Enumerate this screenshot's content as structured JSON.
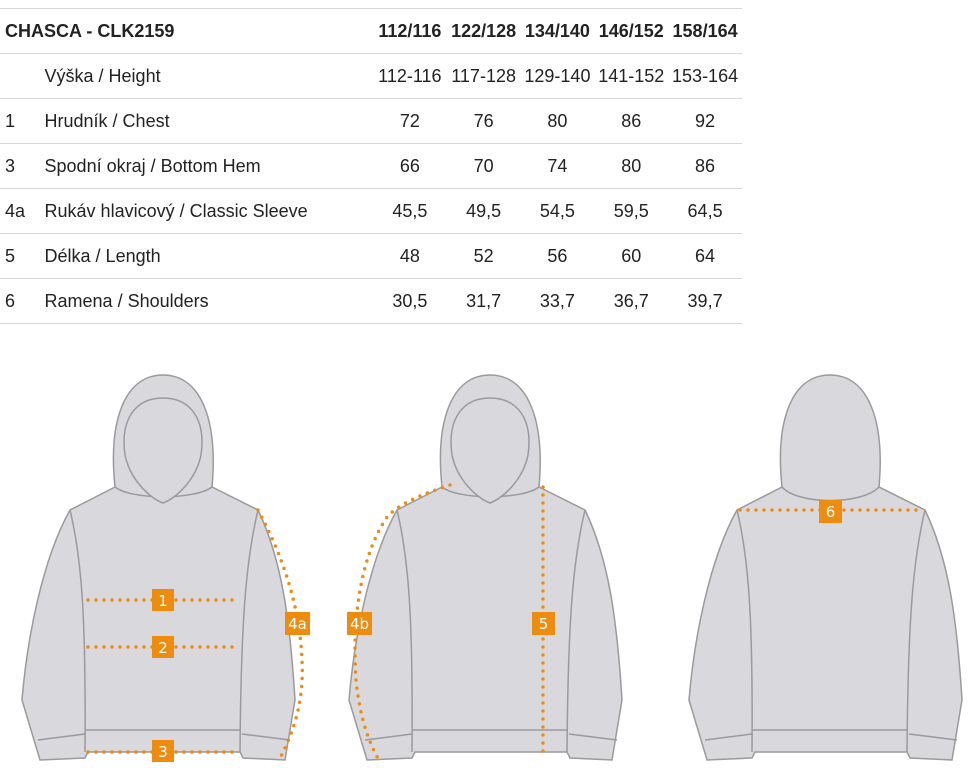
{
  "table": {
    "title": "CHASCA - CLK2159",
    "sizes": [
      "112/116",
      "122/128",
      "134/140",
      "146/152",
      "158/164"
    ],
    "rows": [
      {
        "num": "",
        "label": "Výška / Height",
        "values": [
          "112-116",
          "117-128",
          "129-140",
          "141-152",
          "153-164"
        ]
      },
      {
        "num": "1",
        "label": "Hrudník / Chest",
        "values": [
          "72",
          "76",
          "80",
          "86",
          "92"
        ]
      },
      {
        "num": "3",
        "label": "Spodní okraj / Bottom Hem",
        "values": [
          "66",
          "70",
          "74",
          "80",
          "86"
        ]
      },
      {
        "num": "4a",
        "label": "Rukáv hlavicový / Classic Sleeve",
        "values": [
          "45,5",
          "49,5",
          "54,5",
          "59,5",
          "64,5"
        ]
      },
      {
        "num": "5",
        "label": "Délka / Length",
        "values": [
          "48",
          "52",
          "56",
          "60",
          "64"
        ]
      },
      {
        "num": "6",
        "label": "Ramena / Shoulders",
        "values": [
          "30,5",
          "31,7",
          "33,7",
          "36,7",
          "39,7"
        ]
      }
    ]
  },
  "diagram": {
    "markers": {
      "chest": "1",
      "waist": "2",
      "hem": "3",
      "sleeve_classic": "4a",
      "sleeve_raglan": "4b",
      "length": "5",
      "shoulders": "6"
    },
    "colors": {
      "garment": "#d9d9dd",
      "outline": "#9a9a9e",
      "measure": "#ee8c10"
    }
  }
}
